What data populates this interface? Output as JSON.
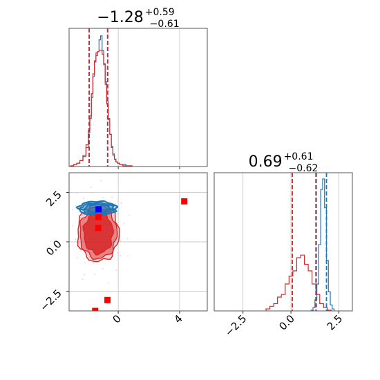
{
  "figure": {
    "title_x": {
      "main": "−1.28",
      "sup": "+0.59",
      "sub": "−0.61"
    },
    "title_y": {
      "main": "0.69",
      "sup": "+0.61",
      "sub": "−0.62"
    }
  },
  "colors": {
    "blue": "#1f77b4",
    "red": "#d62728",
    "marker_red": "#ff0000",
    "marker_blue": "#0000ff"
  },
  "chart_data": [
    {
      "type": "histogram",
      "panel": "x marginal",
      "xlim": [
        -3.2,
        5.8
      ],
      "series": [
        {
          "name": "",
          "color": "#1f77b4",
          "x": [
            -3.0,
            -2.8,
            -2.6,
            -2.4,
            -2.2,
            -2.0,
            -1.9,
            -1.8,
            -1.7,
            -1.6,
            -1.5,
            -1.4,
            -1.3,
            -1.2,
            -1.1,
            -1.0,
            -0.9,
            -0.8,
            -0.7,
            -0.6,
            -0.5,
            -0.4,
            -0.3,
            -0.2,
            -0.1,
            0.0,
            0.2,
            0.4,
            0.6,
            0.8
          ],
          "values": [
            0,
            1,
            2,
            4,
            7,
            14,
            25,
            36,
            52,
            68,
            79,
            84,
            87,
            96,
            99,
            88,
            78,
            64,
            49,
            36,
            24,
            15,
            9,
            5,
            3,
            2,
            1,
            1,
            0,
            0
          ]
        },
        {
          "name": "",
          "color": "#d62728",
          "x": [
            -3.0,
            -2.8,
            -2.6,
            -2.4,
            -2.2,
            -2.0,
            -1.9,
            -1.8,
            -1.7,
            -1.6,
            -1.5,
            -1.4,
            -1.3,
            -1.2,
            -1.1,
            -1.0,
            -0.9,
            -0.8,
            -0.7,
            -0.6,
            -0.5,
            -0.4,
            -0.3,
            -0.2,
            -0.1,
            0.0,
            0.2,
            0.4,
            0.6,
            0.8
          ],
          "values": [
            0,
            1,
            2,
            4,
            8,
            16,
            27,
            38,
            55,
            70,
            80,
            86,
            87,
            88,
            88,
            85,
            77,
            62,
            47,
            35,
            24,
            14,
            8,
            5,
            3,
            2,
            1,
            0,
            0,
            0
          ]
        }
      ],
      "quantile_lines": [
        {
          "x": -1.89,
          "color": "#1f77b4"
        },
        {
          "x": -0.69,
          "color": "#1f77b4"
        },
        {
          "x": -1.89,
          "color": "#d62728"
        },
        {
          "x": -0.69,
          "color": "#d62728"
        }
      ]
    },
    {
      "type": "scatter",
      "panel": "2D contour",
      "xlim": [
        -3.2,
        5.8
      ],
      "ylim": [
        -3.5,
        3.5
      ],
      "x_ticks": [
        "0",
        "4"
      ],
      "y_ticks": [
        "2.5",
        "0.0",
        "−2.5"
      ],
      "blue_contours": {
        "center": [
          -1.35,
          1.7
        ],
        "levels": [
          [
            1.25,
            0.35
          ],
          [
            1.05,
            0.27
          ],
          [
            0.8,
            0.2
          ]
        ]
      },
      "red_contours": {
        "center": [
          -1.3,
          0.45
        ],
        "levels": [
          [
            1.35,
            1.45
          ],
          [
            1.2,
            1.3
          ],
          [
            0.95,
            1.05
          ]
        ]
      },
      "red_markers": [
        [
          -1.28,
          1.25
        ],
        [
          -1.3,
          0.7
        ],
        [
          4.3,
          2.05
        ],
        [
          -0.7,
          -2.95
        ],
        [
          -1.5,
          -3.5
        ]
      ],
      "blue_marker": [
        -1.28,
        1.65
      ]
    },
    {
      "type": "histogram",
      "panel": "y marginal",
      "xlim": [
        -4.0,
        3.2
      ],
      "x_ticks": [
        "−2.5",
        "0.0",
        "2.5"
      ],
      "series": [
        {
          "name": "",
          "color": "#1f77b4",
          "x": [
            1.1,
            1.2,
            1.3,
            1.4,
            1.5,
            1.6,
            1.7,
            1.8,
            1.9,
            2.0,
            2.1,
            2.2
          ],
          "values": [
            0,
            2,
            8,
            20,
            50,
            92,
            100,
            78,
            38,
            14,
            4,
            1
          ]
        },
        {
          "name": "",
          "color": "#d62728",
          "x": [
            -1.2,
            -1.0,
            -0.8,
            -0.6,
            -0.4,
            -0.2,
            0.0,
            0.2,
            0.4,
            0.6,
            0.8,
            1.0,
            1.2,
            1.4,
            1.6,
            1.8,
            2.0
          ],
          "values": [
            1,
            3,
            5,
            10,
            12,
            20,
            26,
            30,
            40,
            42,
            35,
            30,
            20,
            12,
            5,
            2,
            0
          ]
        }
      ],
      "quantile_lines": [
        {
          "x": 1.32,
          "color": "#1f77b4"
        },
        {
          "x": 1.85,
          "color": "#1f77b4"
        },
        {
          "x": 0.07,
          "color": "#d62728"
        },
        {
          "x": 1.3,
          "color": "#d62728"
        }
      ]
    }
  ]
}
